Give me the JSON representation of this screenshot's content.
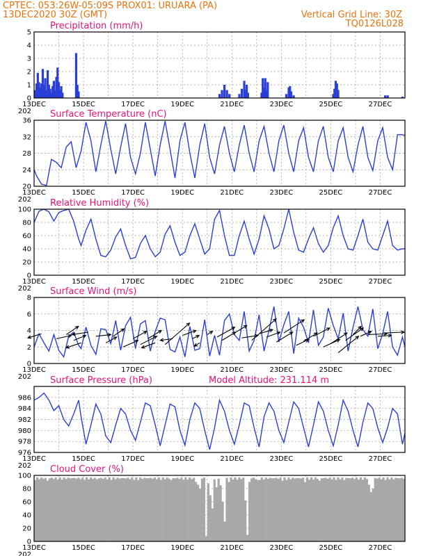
{
  "header": {
    "line1_left": "CPTEC:   053:26W-05:09S   PROX01: URUARA (PA)",
    "line2_left": "13DEC2020 30Z (GMT)",
    "line2_right": "Vertical Grid Line: 30Z",
    "line3_right": "TQ0126L028"
  },
  "x_ticks": [
    "13DEC",
    "15DEC",
    "17DEC",
    "19DEC",
    "21DEC",
    "23DEC",
    "25DEC",
    "27DEC"
  ],
  "x_stub": "202",
  "colors": {
    "header": "#e8730c",
    "title": "#e8127a",
    "series": "#2a3fd6",
    "cloud": "#a8a8a8"
  },
  "chart_data": [
    {
      "type": "bar",
      "title": "Precipitation (mm/h)",
      "ylim": [
        0,
        5
      ],
      "y_ticks": [
        0,
        1,
        2,
        3,
        4,
        5
      ],
      "x_unit": "day from 13DEC",
      "points": [
        [
          0.05,
          0.6
        ],
        [
          0.1,
          1.1
        ],
        [
          0.15,
          1.9
        ],
        [
          0.2,
          1.2
        ],
        [
          0.25,
          0.8
        ],
        [
          0.3,
          1.1
        ],
        [
          0.35,
          2.2
        ],
        [
          0.4,
          1.0
        ],
        [
          0.45,
          1.5
        ],
        [
          0.5,
          0.6
        ],
        [
          0.55,
          2.1
        ],
        [
          0.6,
          1.0
        ],
        [
          0.65,
          0.7
        ],
        [
          0.7,
          0.4
        ],
        [
          0.75,
          0.9
        ],
        [
          0.8,
          1.3
        ],
        [
          0.85,
          0.6
        ],
        [
          0.9,
          1.6
        ],
        [
          0.95,
          2.3
        ],
        [
          1.0,
          1.2
        ],
        [
          1.05,
          0.6
        ],
        [
          1.1,
          0.9
        ],
        [
          1.15,
          0.4
        ],
        [
          1.7,
          3.4
        ],
        [
          1.75,
          1.0
        ],
        [
          1.8,
          0.5
        ],
        [
          7.5,
          0.3
        ],
        [
          7.6,
          0.6
        ],
        [
          7.7,
          1.0
        ],
        [
          7.8,
          0.6
        ],
        [
          7.9,
          0.3
        ],
        [
          8.3,
          0.3
        ],
        [
          8.4,
          0.7
        ],
        [
          8.5,
          1.3
        ],
        [
          8.55,
          0.6
        ],
        [
          8.6,
          1.0
        ],
        [
          8.65,
          0.4
        ],
        [
          9.2,
          0.4
        ],
        [
          9.25,
          1.5
        ],
        [
          9.3,
          0.8
        ],
        [
          9.35,
          1.5
        ],
        [
          9.4,
          0.6
        ],
        [
          9.45,
          1.2
        ],
        [
          10.2,
          0.3
        ],
        [
          10.3,
          0.8
        ],
        [
          10.35,
          0.9
        ],
        [
          10.4,
          0.5
        ],
        [
          10.5,
          0.2
        ],
        [
          12.1,
          0.3
        ],
        [
          12.15,
          0.7
        ],
        [
          12.2,
          1.3
        ],
        [
          12.25,
          1.1
        ],
        [
          12.3,
          0.6
        ],
        [
          14.2,
          0.2
        ],
        [
          14.3,
          0.2
        ],
        [
          14.9,
          0.1
        ]
      ]
    },
    {
      "type": "line",
      "title": "Surface Temperature (nC)",
      "ylim": [
        20,
        36
      ],
      "y_ticks": [
        20,
        24,
        28,
        32,
        36
      ],
      "x_unit": "day from 13DEC",
      "x": [
        0.0,
        0.1,
        0.3,
        0.5,
        0.7,
        0.9,
        1.1,
        1.3,
        1.5,
        1.7,
        1.9,
        2.1,
        2.3,
        2.5,
        2.7,
        2.9,
        3.1,
        3.3,
        3.5,
        3.7,
        3.9,
        4.1,
        4.3,
        4.5,
        4.7,
        4.9,
        5.1,
        5.3,
        5.5,
        5.7,
        5.9,
        6.1,
        6.3,
        6.5,
        6.7,
        6.9,
        7.1,
        7.3,
        7.5,
        7.7,
        7.9,
        8.1,
        8.3,
        8.5,
        8.7,
        8.9,
        9.1,
        9.3,
        9.5,
        9.7,
        9.9,
        10.1,
        10.3,
        10.5,
        10.7,
        10.9,
        11.1,
        11.3,
        11.5,
        11.7,
        11.9,
        12.1,
        12.3,
        12.5,
        12.7,
        12.9,
        13.1,
        13.3,
        13.5,
        13.7,
        13.9,
        14.1,
        14.3,
        14.5,
        14.7,
        14.9,
        15.0
      ],
      "y": [
        24,
        22.5,
        20.5,
        20.2,
        26.5,
        25.8,
        24.5,
        29.5,
        30.8,
        24.5,
        28.5,
        35.5,
        31,
        23.5,
        30,
        35.8,
        29,
        23,
        29.5,
        35.2,
        27,
        23,
        28,
        35.5,
        29,
        22.5,
        30,
        35.8,
        29,
        22,
        31,
        35.5,
        28,
        22,
        30,
        35.2,
        27,
        23,
        30,
        34.5,
        28,
        23.5,
        30,
        34.8,
        28,
        23.5,
        31,
        34.5,
        28,
        23.5,
        31,
        34.8,
        28,
        23.5,
        31,
        34.2,
        27,
        23.5,
        31,
        34.5,
        27,
        23.5,
        31,
        34.2,
        27,
        23.5,
        30,
        34.5,
        27,
        23.8,
        31,
        34.2,
        27,
        24,
        32.5,
        32.5,
        32.3
      ]
    },
    {
      "type": "line",
      "title": "Relative Humidity (%)",
      "ylim": [
        0,
        100
      ],
      "y_ticks": [
        0,
        20,
        40,
        60,
        80,
        100
      ],
      "x_unit": "day from 13DEC",
      "x": [
        0.0,
        0.2,
        0.4,
        0.6,
        0.8,
        1.0,
        1.2,
        1.4,
        1.6,
        1.8,
        1.9,
        2.1,
        2.3,
        2.5,
        2.7,
        2.9,
        3.1,
        3.3,
        3.5,
        3.7,
        3.9,
        4.1,
        4.3,
        4.5,
        4.7,
        4.9,
        5.1,
        5.3,
        5.5,
        5.7,
        5.9,
        6.1,
        6.3,
        6.5,
        6.7,
        6.9,
        7.1,
        7.3,
        7.5,
        7.7,
        7.9,
        8.1,
        8.3,
        8.5,
        8.7,
        8.9,
        9.1,
        9.3,
        9.5,
        9.7,
        9.9,
        10.1,
        10.3,
        10.5,
        10.7,
        10.9,
        11.1,
        11.3,
        11.5,
        11.7,
        11.9,
        12.1,
        12.3,
        12.5,
        12.7,
        12.9,
        13.1,
        13.3,
        13.5,
        13.7,
        13.9,
        14.1,
        14.3,
        14.5,
        14.7,
        14.9,
        15.0
      ],
      "y": [
        80,
        97,
        100,
        96,
        82,
        95,
        98,
        100,
        82,
        55,
        45,
        68,
        85,
        55,
        30,
        28,
        38,
        58,
        70,
        45,
        25,
        27,
        48,
        60,
        40,
        28,
        35,
        62,
        75,
        50,
        30,
        35,
        60,
        78,
        55,
        32,
        40,
        85,
        98,
        60,
        30,
        30,
        60,
        82,
        55,
        32,
        55,
        90,
        70,
        40,
        45,
        70,
        100,
        65,
        38,
        35,
        55,
        72,
        48,
        35,
        45,
        72,
        90,
        60,
        40,
        38,
        60,
        85,
        50,
        40,
        38,
        60,
        82,
        45,
        38,
        40,
        40
      ]
    },
    {
      "type": "line",
      "title": "Surface Wind (m/s)",
      "ylim": [
        0,
        8
      ],
      "y_ticks": [
        0,
        2,
        4,
        6,
        8
      ],
      "x_unit": "day from 13DEC",
      "x": [
        0.0,
        0.2,
        0.4,
        0.6,
        0.8,
        1.0,
        1.2,
        1.4,
        1.6,
        1.8,
        1.9,
        2.1,
        2.3,
        2.5,
        2.7,
        2.9,
        3.1,
        3.3,
        3.5,
        3.7,
        3.9,
        4.1,
        4.3,
        4.5,
        4.7,
        4.9,
        5.1,
        5.3,
        5.5,
        5.7,
        5.9,
        6.1,
        6.3,
        6.5,
        6.7,
        6.9,
        7.1,
        7.3,
        7.5,
        7.7,
        7.9,
        8.1,
        8.3,
        8.5,
        8.7,
        8.9,
        9.1,
        9.3,
        9.5,
        9.7,
        9.9,
        10.1,
        10.3,
        10.5,
        10.7,
        10.9,
        11.1,
        11.3,
        11.5,
        11.7,
        11.9,
        12.1,
        12.3,
        12.5,
        12.7,
        12.9,
        13.1,
        13.3,
        13.5,
        13.7,
        13.9,
        14.1,
        14.3,
        14.5,
        14.7,
        14.9,
        15.0
      ],
      "y": [
        2,
        3.6,
        2.5,
        1.5,
        3.5,
        1.6,
        0.8,
        3.3,
        3.8,
        2.2,
        1.8,
        4.4,
        2.2,
        1.1,
        4.2,
        4.1,
        2.4,
        5.2,
        1.6,
        4.6,
        5.6,
        1.8,
        4.8,
        5.2,
        1.5,
        3.9,
        5.5,
        5.3,
        1.7,
        1.4,
        3.2,
        0.8,
        4.5,
        1.6,
        1.8,
        5.3,
        0.9,
        3.4,
        1.0,
        5.2,
        6.0,
        3.5,
        2.8,
        6.3,
        1.5,
        2.8,
        5.9,
        1.5,
        4.0,
        6.9,
        2.6,
        4.7,
        6.3,
        1.2,
        5.5,
        4.4,
        2.5,
        6.5,
        2.2,
        3.2,
        6.7,
        4.6,
        3.0,
        6.1,
        1.5,
        4.4,
        6.9,
        4.1,
        3.3,
        6.6,
        1.8,
        3.6,
        6.3,
        2.0,
        1.0,
        3.2,
        2.0
      ],
      "vectors": [
        [
          0.3,
          3.6,
          -1.0,
          -0.5
        ],
        [
          0.9,
          3.0,
          1.1,
          0.4
        ],
        [
          1.3,
          3.5,
          0.9,
          1.0
        ],
        [
          1.6,
          2.8,
          0.9,
          0.6
        ],
        [
          1.9,
          2.5,
          -1.1,
          -0.6
        ],
        [
          2.2,
          3.8,
          -1.2,
          -0.3
        ],
        [
          2.5,
          3.3,
          1.1,
          0.2
        ],
        [
          2.9,
          2.5,
          0.8,
          0.7
        ],
        [
          3.2,
          3.3,
          0.8,
          0.9
        ],
        [
          3.6,
          2.0,
          1.1,
          0.8
        ],
        [
          4.0,
          3.0,
          1.0,
          0.9
        ],
        [
          4.3,
          2.3,
          1.2,
          1.0
        ],
        [
          4.6,
          3.0,
          1.0,
          1.0
        ],
        [
          4.9,
          2.5,
          -1.0,
          -0.6
        ],
        [
          5.3,
          2.3,
          1.8,
          2.6
        ],
        [
          5.6,
          3.0,
          -0.9,
          -0.2
        ],
        [
          6.0,
          3.4,
          1.0,
          0.6
        ],
        [
          6.4,
          3.0,
          0.5,
          0.4
        ],
        [
          6.7,
          2.5,
          -0.4,
          -0.4
        ],
        [
          7.0,
          3.5,
          0.4,
          0.4
        ],
        [
          7.4,
          3.2,
          1.3,
          1.2
        ],
        [
          7.6,
          2.8,
          1.0,
          1.0
        ],
        [
          8.0,
          3.5,
          1.1,
          1.1
        ],
        [
          8.4,
          3.1,
          1.2,
          0.3
        ],
        [
          8.8,
          2.8,
          1.8,
          2.6
        ],
        [
          9.1,
          3.6,
          1.0,
          0.5
        ],
        [
          9.4,
          3.2,
          1.0,
          0.6
        ],
        [
          9.8,
          2.6,
          1.2,
          1.2
        ],
        [
          10.1,
          3.7,
          1.5,
          1.6
        ],
        [
          10.6,
          2.2,
          0.9,
          0.7
        ],
        [
          10.9,
          2.7,
          1.0,
          1.0
        ],
        [
          11.3,
          3.3,
          1.2,
          1.0
        ],
        [
          11.7,
          2.0,
          1.2,
          0.9
        ],
        [
          12.0,
          2.4,
          1.2,
          1.3
        ],
        [
          12.3,
          1.3,
          1.5,
          2.0
        ],
        [
          12.6,
          2.8,
          1.3,
          1.5
        ],
        [
          12.9,
          3.5,
          0.6,
          1.0
        ],
        [
          13.2,
          3.3,
          0.8,
          0.6
        ],
        [
          13.5,
          3.5,
          1.4,
          0.1
        ],
        [
          13.9,
          3.3,
          1.0,
          0.1
        ],
        [
          14.2,
          3.7,
          1.4,
          0.1
        ]
      ]
    },
    {
      "type": "line",
      "title": "Surface Pressure (hPa)",
      "annotation": "Model Altitude: 231.114 m",
      "ylim": [
        976,
        988
      ],
      "y_ticks": [
        976,
        978,
        980,
        982,
        984,
        986
      ],
      "x_unit": "day from 13DEC",
      "x": [
        0.0,
        0.2,
        0.4,
        0.6,
        0.8,
        1.0,
        1.2,
        1.4,
        1.6,
        1.8,
        1.9,
        2.1,
        2.3,
        2.5,
        2.7,
        2.9,
        3.1,
        3.3,
        3.5,
        3.7,
        3.9,
        4.1,
        4.3,
        4.5,
        4.7,
        4.9,
        5.1,
        5.3,
        5.5,
        5.7,
        5.9,
        6.1,
        6.3,
        6.5,
        6.7,
        6.9,
        7.1,
        7.3,
        7.5,
        7.7,
        7.9,
        8.1,
        8.3,
        8.5,
        8.7,
        8.9,
        9.1,
        9.3,
        9.5,
        9.7,
        9.9,
        10.1,
        10.3,
        10.5,
        10.7,
        10.9,
        11.1,
        11.3,
        11.5,
        11.7,
        11.9,
        12.1,
        12.3,
        12.5,
        12.7,
        12.9,
        13.1,
        13.3,
        13.5,
        13.7,
        13.9,
        14.1,
        14.3,
        14.5,
        14.7,
        14.9,
        15.0
      ],
      "y": [
        985.5,
        986.0,
        986.8,
        985.5,
        983.6,
        984.5,
        982.0,
        980.8,
        983.0,
        985.5,
        982.5,
        977.5,
        981.0,
        984.8,
        983.0,
        979.0,
        977.8,
        981.0,
        984.0,
        983.0,
        980.0,
        978.2,
        981.5,
        985.0,
        984.5,
        981.0,
        977.2,
        981.0,
        984.8,
        984.3,
        980.0,
        977.3,
        982.0,
        985.0,
        984.0,
        980.0,
        976.5,
        980.5,
        985.5,
        983.5,
        980.0,
        977.5,
        981.0,
        985.0,
        984.5,
        980.5,
        977.0,
        982.5,
        985.0,
        983.5,
        980.0,
        977.8,
        981.5,
        985.2,
        984.0,
        980.5,
        977.0,
        981.0,
        985.2,
        983.5,
        980.0,
        977.2,
        981.0,
        985.5,
        983.5,
        980.0,
        977.0,
        981.5,
        985.0,
        984.0,
        980.5,
        977.8,
        980.5,
        984.0,
        983.0,
        977.5,
        979.5
      ]
    },
    {
      "type": "bar",
      "title": "Cloud Cover (%)",
      "ylim": [
        0,
        100
      ],
      "y_ticks": [
        0,
        20,
        40,
        60,
        80,
        100
      ],
      "x_unit": "day from 13DEC",
      "base_value": 96,
      "dips": [
        [
          0.5,
          92
        ],
        [
          2.5,
          94
        ],
        [
          4.2,
          93
        ],
        [
          5.5,
          93
        ],
        [
          6.5,
          90
        ],
        [
          6.6,
          86
        ],
        [
          6.7,
          80
        ],
        [
          6.9,
          8
        ],
        [
          7.0,
          88
        ],
        [
          7.1,
          70
        ],
        [
          7.2,
          50
        ],
        [
          7.3,
          82
        ],
        [
          7.5,
          85
        ],
        [
          7.6,
          60
        ],
        [
          7.65,
          40
        ],
        [
          7.7,
          30
        ],
        [
          7.8,
          90
        ],
        [
          8.5,
          62
        ],
        [
          8.55,
          20
        ],
        [
          8.6,
          10
        ],
        [
          8.65,
          28
        ],
        [
          8.7,
          90
        ],
        [
          9.0,
          93
        ],
        [
          10.0,
          92
        ],
        [
          10.9,
          90
        ],
        [
          11.5,
          92
        ],
        [
          12.5,
          93
        ],
        [
          13.5,
          86
        ],
        [
          13.6,
          75
        ],
        [
          13.65,
          65
        ],
        [
          13.7,
          80
        ],
        [
          14.5,
          94
        ]
      ]
    }
  ]
}
